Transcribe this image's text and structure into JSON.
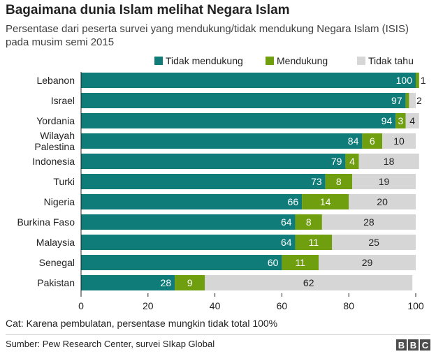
{
  "title": "Bagaimana dunia Islam melihat Negara Islam",
  "subtitle": "Persentase dari peserta survei yang mendukung/tidak mendukung Negara Islam (ISIS) pada musim semi 2015",
  "note": "Cat: Karena pembulatan, persentase mungkin tidak total 100%",
  "source": "Sumber: Pew Research Center, survei SIkap Global",
  "logo": {
    "letters": [
      "B",
      "B",
      "C"
    ]
  },
  "colors": {
    "tidak_mendukung": "#0f7c7a",
    "mendukung": "#6f9e0f",
    "tidak_tahu": "#d6d6d6"
  },
  "chart_data": {
    "type": "bar",
    "orientation": "horizontal",
    "stacked": true,
    "title": "",
    "xlabel": "",
    "ylabel": "",
    "xlim": [
      0,
      100
    ],
    "xticks": [
      0,
      20,
      40,
      60,
      80,
      100
    ],
    "grid": false,
    "legend_position": "top-right",
    "categories": [
      "Lebanon",
      "Israel",
      "Yordania",
      "Wilayah Palestina",
      "Indonesia",
      "Turki",
      "Nigeria",
      "Burkina Faso",
      "Malaysia",
      "Senegal",
      "Pakistan"
    ],
    "series": [
      {
        "name": "Tidak mendukung",
        "values": [
          100,
          97,
          94,
          84,
          79,
          73,
          66,
          64,
          64,
          60,
          28
        ]
      },
      {
        "name": "Mendukung",
        "values": [
          1,
          1,
          3,
          6,
          4,
          8,
          14,
          8,
          11,
          11,
          9
        ]
      },
      {
        "name": "Tidak tahu",
        "values": [
          0,
          2,
          4,
          10,
          18,
          19,
          20,
          28,
          25,
          29,
          62
        ]
      }
    ],
    "data_labels": [
      [
        "100",
        "1",
        ""
      ],
      [
        "97",
        "1",
        "2"
      ],
      [
        "94",
        "3",
        "4"
      ],
      [
        "84",
        "6",
        "10"
      ],
      [
        "79",
        "4",
        "18"
      ],
      [
        "73",
        "8",
        "19"
      ],
      [
        "66",
        "14",
        "20"
      ],
      [
        "64",
        "8",
        "28"
      ],
      [
        "64",
        "11",
        "25"
      ],
      [
        "60",
        "11",
        "29"
      ],
      [
        "28",
        "9",
        "62"
      ]
    ]
  }
}
